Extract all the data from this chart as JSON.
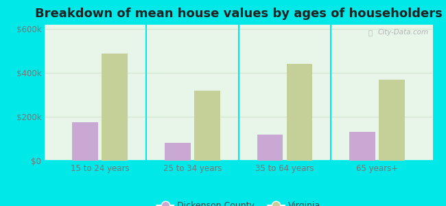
{
  "title": "Breakdown of mean house values by ages of householders",
  "categories": [
    "15 to 24 years",
    "25 to 34 years",
    "35 to 64 years",
    "65 years+"
  ],
  "dickenson_values": [
    175000,
    80000,
    120000,
    130000
  ],
  "virginia_values": [
    490000,
    320000,
    440000,
    370000
  ],
  "dickenson_color": "#c9a8d4",
  "virginia_color": "#c5d098",
  "ylim": [
    0,
    620000
  ],
  "yticks": [
    0,
    200000,
    400000,
    600000
  ],
  "ytick_labels": [
    "$0",
    "$200k",
    "$400k",
    "$600k"
  ],
  "plot_bg_color": "#e8f5e9",
  "outer_background": "#00e8e8",
  "title_fontsize": 13,
  "legend_labels": [
    "Dickenson County",
    "Virginia"
  ],
  "watermark": "City-Data.com",
  "bar_width": 0.28,
  "separator_color": "#00d0d0",
  "grid_color": "#d0e8d0"
}
